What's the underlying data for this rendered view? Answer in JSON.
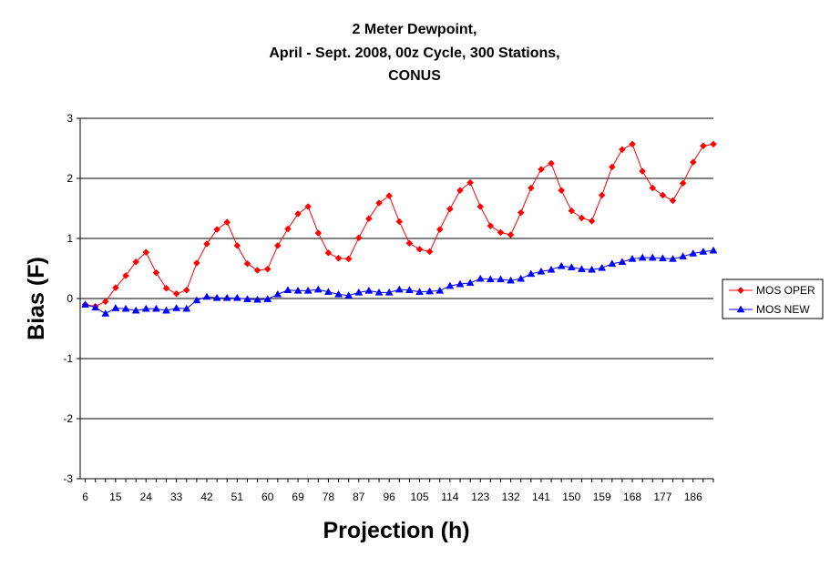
{
  "chart_data": {
    "type": "line",
    "title_lines": [
      "2 Meter Dewpoint,",
      "April - Sept. 2008, 00z Cycle, 300 Stations,",
      "CONUS"
    ],
    "xlabel": "Projection (h)",
    "ylabel": "Bias (F)",
    "x_tick_labels": [
      "6",
      "15",
      "24",
      "33",
      "42",
      "51",
      "60",
      "69",
      "78",
      "87",
      "96",
      "105",
      "114",
      "123",
      "132",
      "141",
      "150",
      "159",
      "168",
      "177",
      "186"
    ],
    "x": [
      6,
      9,
      12,
      15,
      18,
      21,
      24,
      27,
      30,
      33,
      36,
      39,
      42,
      45,
      48,
      51,
      54,
      57,
      60,
      63,
      66,
      69,
      72,
      75,
      78,
      81,
      84,
      87,
      90,
      93,
      96,
      99,
      102,
      105,
      108,
      111,
      114,
      117,
      120,
      123,
      126,
      129,
      132,
      135,
      138,
      141,
      144,
      147,
      150,
      153,
      156,
      159,
      162,
      165,
      168,
      171,
      174,
      177,
      180,
      183,
      186,
      189,
      192
    ],
    "ylim": [
      -3,
      3
    ],
    "yticks": [
      -3,
      -2,
      -1,
      0,
      1,
      2,
      3
    ],
    "grid": "horizontal",
    "legend_position": "right",
    "series": [
      {
        "name": "MOS OPER",
        "color": "#ff0000",
        "marker": "diamond",
        "values": [
          -0.1,
          -0.13,
          -0.05,
          0.18,
          0.38,
          0.61,
          0.77,
          0.43,
          0.17,
          0.08,
          0.14,
          0.59,
          0.91,
          1.15,
          1.27,
          0.88,
          0.58,
          0.47,
          0.49,
          0.88,
          1.16,
          1.41,
          1.53,
          1.09,
          0.76,
          0.67,
          0.66,
          1.01,
          1.33,
          1.59,
          1.71,
          1.28,
          0.92,
          0.82,
          0.78,
          1.15,
          1.49,
          1.8,
          1.93,
          1.53,
          1.21,
          1.1,
          1.06,
          1.43,
          1.84,
          2.15,
          2.25,
          1.8,
          1.46,
          1.34,
          1.29,
          1.72,
          2.19,
          2.48,
          2.57,
          2.12,
          1.84,
          1.72,
          1.63,
          1.92,
          2.27,
          2.54,
          2.57
        ]
      },
      {
        "name": "MOS NEW",
        "color": "#0000ff",
        "marker": "triangle",
        "values": [
          -0.1,
          -0.15,
          -0.25,
          -0.16,
          -0.17,
          -0.2,
          -0.17,
          -0.17,
          -0.2,
          -0.16,
          -0.17,
          -0.03,
          0.03,
          0.01,
          0.01,
          0.01,
          -0.01,
          -0.02,
          -0.01,
          0.07,
          0.14,
          0.13,
          0.13,
          0.15,
          0.11,
          0.07,
          0.05,
          0.1,
          0.13,
          0.1,
          0.1,
          0.15,
          0.14,
          0.11,
          0.12,
          0.13,
          0.21,
          0.24,
          0.26,
          0.33,
          0.32,
          0.32,
          0.3,
          0.33,
          0.41,
          0.45,
          0.48,
          0.54,
          0.52,
          0.49,
          0.48,
          0.51,
          0.58,
          0.61,
          0.66,
          0.68,
          0.68,
          0.67,
          0.66,
          0.7,
          0.75,
          0.78,
          0.8
        ]
      }
    ]
  }
}
